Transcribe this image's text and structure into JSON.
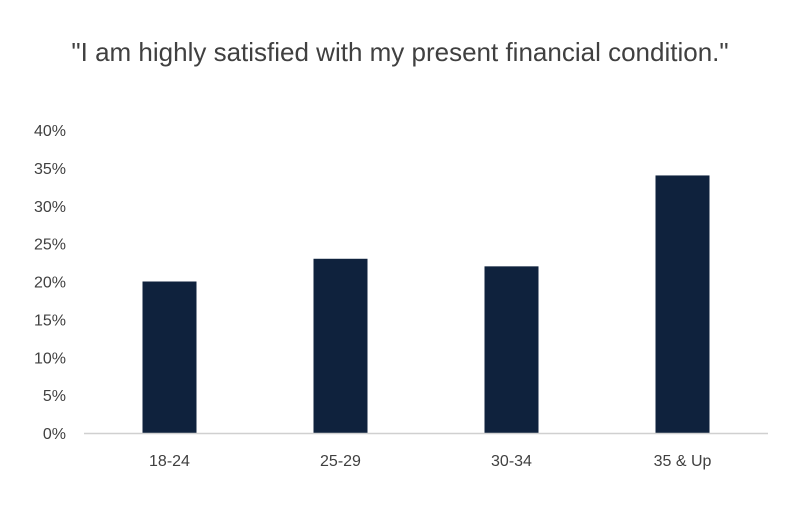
{
  "chart_data": {
    "type": "bar",
    "title": "\"I am highly satisfied with my present financial condition.\"",
    "categories": [
      "18-24",
      "25-29",
      "30-34",
      "35 & Up"
    ],
    "values": [
      20,
      23,
      22,
      34
    ],
    "ylim": [
      0,
      40
    ],
    "ytick_step": 5,
    "ytick_labels": [
      "0%",
      "5%",
      "10%",
      "15%",
      "20%",
      "25%",
      "30%",
      "35%",
      "40%"
    ],
    "xlabel": "",
    "ylabel": "",
    "grid": false,
    "legend": "none",
    "bar_color": "#0f223d",
    "axis_color": "#d0d0d0"
  }
}
